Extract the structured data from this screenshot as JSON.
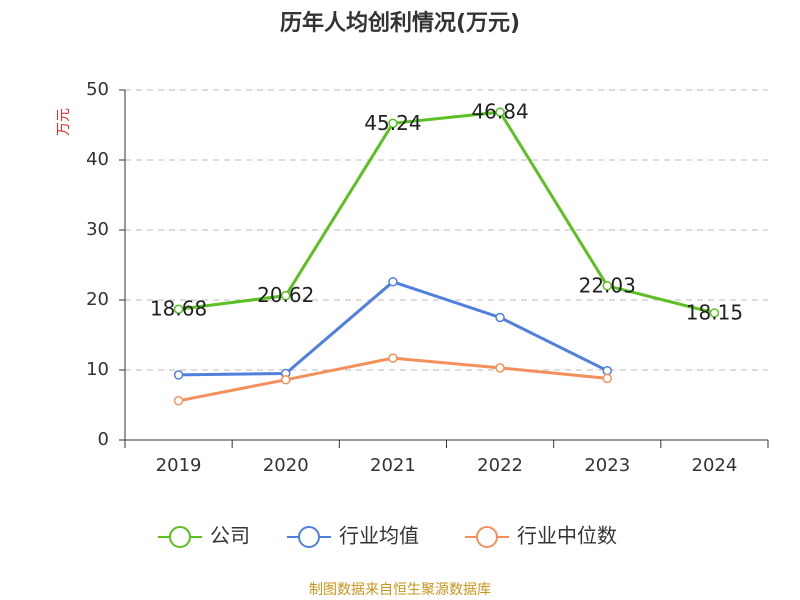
{
  "chart_data": {
    "type": "line",
    "title": "历年人均创利情况(万元)",
    "y_label": "万元",
    "source": "制图数据来自恒生聚源数据库",
    "categories": [
      "2019",
      "2020",
      "2021",
      "2022",
      "2023",
      "2024"
    ],
    "series": [
      {
        "name": "公司",
        "color": "#5cc024",
        "values": [
          18.68,
          20.62,
          45.24,
          46.84,
          22.03,
          18.15
        ],
        "show_labels": true
      },
      {
        "name": "行业均值",
        "color": "#4e80dc",
        "values": [
          9.3,
          9.5,
          22.6,
          17.5,
          9.9,
          null
        ]
      },
      {
        "name": "行业中位数",
        "color": "#f4905c",
        "values": [
          5.6,
          8.6,
          11.7,
          10.3,
          8.8,
          null
        ]
      }
    ],
    "ylim": [
      0,
      50
    ],
    "yticks": [
      0,
      10,
      20,
      30,
      40,
      50
    ],
    "grid": true
  }
}
